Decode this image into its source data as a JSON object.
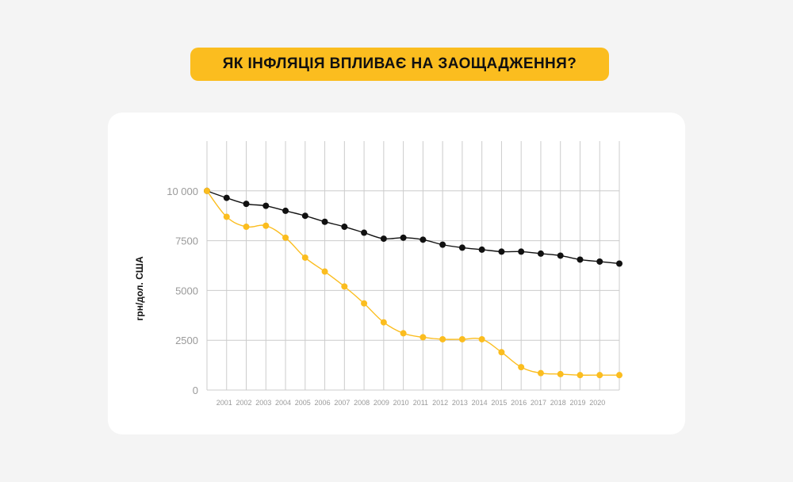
{
  "title": "ЯК ІНФЛЯЦІЯ ВПЛИВАЄ НА ЗАОЩАДЖЕННЯ?",
  "colors": {
    "accent": "#fbbd1f",
    "line_dark": "#111111",
    "grid": "#cccccc",
    "tick": "#9a9a9a"
  },
  "chart_data": {
    "type": "line",
    "title": "ЯК ІНФЛЯЦІЯ ВПЛИВАЄ НА ЗАОЩАДЖЕННЯ?",
    "ylabel": "грн/дол. США",
    "xlabel": "",
    "x_tick_labels": [
      "2001",
      "2002",
      "2003",
      "2004",
      "2005",
      "2006",
      "2007",
      "2008",
      "2009",
      "2010",
      "2011",
      "2012",
      "2013",
      "2014",
      "2015",
      "2016",
      "2017",
      "2018",
      "2019",
      "2020"
    ],
    "y_tick_labels": [
      "10 000",
      "7500",
      "5000",
      "2500",
      "0"
    ],
    "y_ticks": [
      10000,
      7500,
      5000,
      2500,
      0
    ],
    "ylim": [
      0,
      12500
    ],
    "xlim": [
      2000,
      2021
    ],
    "grid": true,
    "legend": "none",
    "series": [
      {
        "color": "#111111",
        "x": [
          2000,
          2001,
          2002,
          2003,
          2004,
          2005,
          2006,
          2007,
          2008,
          2009,
          2010,
          2011,
          2012,
          2013,
          2014,
          2015,
          2016,
          2017,
          2018,
          2019,
          2020,
          2021
        ],
        "values": [
          10000,
          9650,
          9350,
          9250,
          9000,
          8750,
          8450,
          8200,
          7900,
          7600,
          7650,
          7550,
          7300,
          7150,
          7050,
          6950,
          6950,
          6850,
          6750,
          6550,
          6450,
          6350
        ]
      },
      {
        "color": "#fbbd1f",
        "x": [
          2000,
          2001,
          2002,
          2003,
          2004,
          2005,
          2006,
          2007,
          2008,
          2009,
          2010,
          2011,
          2012,
          2013,
          2014,
          2015,
          2016,
          2017,
          2018,
          2019,
          2020,
          2021
        ],
        "values": [
          10000,
          8700,
          8200,
          8250,
          7650,
          6650,
          5950,
          5200,
          4350,
          3400,
          2850,
          2650,
          2550,
          2550,
          2550,
          1900,
          1150,
          850,
          800,
          750,
          750,
          750
        ]
      }
    ]
  }
}
